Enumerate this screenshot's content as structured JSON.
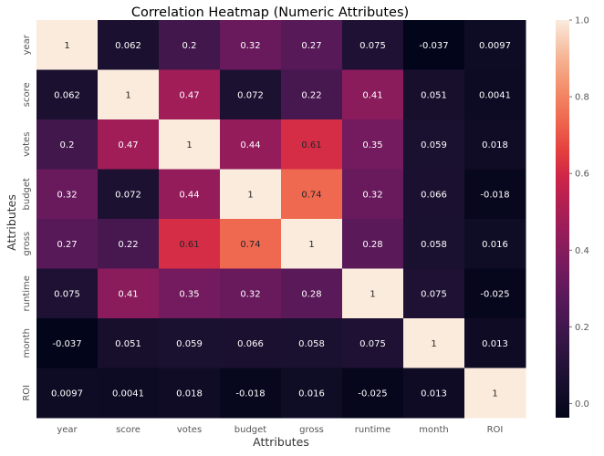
{
  "chart_data": {
    "type": "heatmap",
    "title": "Correlation Heatmap (Numeric Attributes)",
    "xlabel": "Attributes",
    "ylabel": "Attributes",
    "x_categories": [
      "year",
      "score",
      "votes",
      "budget",
      "gross",
      "runtime",
      "month",
      "ROI"
    ],
    "y_categories": [
      "year",
      "score",
      "votes",
      "budget",
      "gross",
      "runtime",
      "month",
      "ROI"
    ],
    "values": [
      [
        1,
        0.062,
        0.2,
        0.32,
        0.27,
        0.075,
        -0.037,
        0.0097
      ],
      [
        0.062,
        1,
        0.47,
        0.072,
        0.22,
        0.41,
        0.051,
        0.0041
      ],
      [
        0.2,
        0.47,
        1,
        0.44,
        0.61,
        0.35,
        0.059,
        0.018
      ],
      [
        0.32,
        0.072,
        0.44,
        1,
        0.74,
        0.32,
        0.066,
        -0.018
      ],
      [
        0.27,
        0.22,
        0.61,
        0.74,
        1,
        0.28,
        0.058,
        0.016
      ],
      [
        0.075,
        0.41,
        0.35,
        0.32,
        0.28,
        1,
        0.075,
        -0.025
      ],
      [
        -0.037,
        0.051,
        0.059,
        0.066,
        0.058,
        0.075,
        1,
        0.013
      ],
      [
        0.0097,
        0.0041,
        0.018,
        -0.018,
        0.016,
        -0.025,
        0.013,
        1
      ]
    ],
    "value_labels": [
      [
        "1",
        "0.062",
        "0.2",
        "0.32",
        "0.27",
        "0.075",
        "-0.037",
        "0.0097"
      ],
      [
        "0.062",
        "1",
        "0.47",
        "0.072",
        "0.22",
        "0.41",
        "0.051",
        "0.0041"
      ],
      [
        "0.2",
        "0.47",
        "1",
        "0.44",
        "0.61",
        "0.35",
        "0.059",
        "0.018"
      ],
      [
        "0.32",
        "0.072",
        "0.44",
        "1",
        "0.74",
        "0.32",
        "0.066",
        "-0.018"
      ],
      [
        "0.27",
        "0.22",
        "0.61",
        "0.74",
        "1",
        "0.28",
        "0.058",
        "0.016"
      ],
      [
        "0.075",
        "0.41",
        "0.35",
        "0.32",
        "0.28",
        "1",
        "0.075",
        "-0.025"
      ],
      [
        "-0.037",
        "0.051",
        "0.059",
        "0.066",
        "0.058",
        "0.075",
        "1",
        "0.013"
      ],
      [
        "0.0097",
        "0.0041",
        "0.018",
        "-0.018",
        "0.016",
        "-0.025",
        "0.013",
        "1"
      ]
    ],
    "color_scale": "rocket",
    "color_range": [
      -0.037,
      1
    ],
    "colorbar_ticks": [
      0.0,
      0.2,
      0.4,
      0.6,
      0.8,
      1.0
    ],
    "colorbar_tick_labels": [
      "0.0",
      "0.2",
      "0.4",
      "0.6",
      "0.8",
      "1.0"
    ],
    "annotated": true
  }
}
